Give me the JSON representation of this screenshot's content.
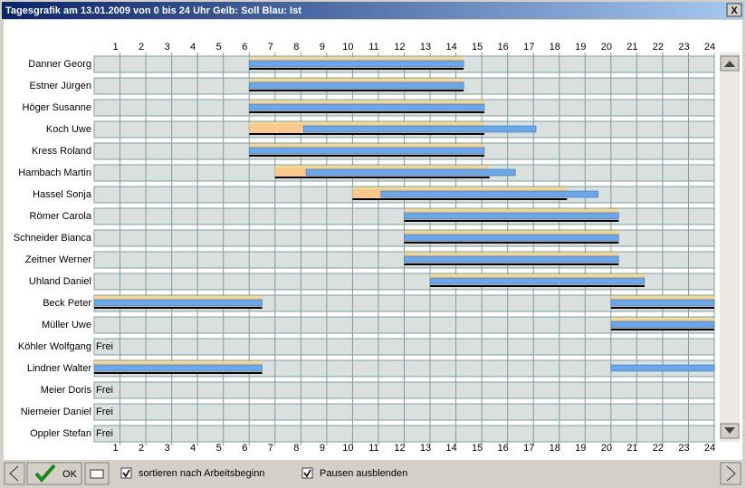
{
  "window": {
    "title": "Tagesgrafik am 13.01.2009 von 0 bis 24 Uhr  Gelb: Soll  Blau: Ist",
    "close": "X"
  },
  "chart_data": {
    "type": "gantt",
    "categories": [
      "Danner Georg",
      "Estner Jürgen",
      "Höger Susanne",
      "Koch Uwe",
      "Kress Roland",
      "Hambach Martin",
      "Hassel Sonja",
      "Römer Carola",
      "Schneider Bianca",
      "Zeitner Werner",
      "Uhland Daniel",
      "Beck Peter",
      "Müller Uwe",
      "Köhler Wolfgang",
      "Lindner Walter",
      "Meier Doris",
      "Niemeier Daniel",
      "Oppler Stefan"
    ],
    "free_label": "Frei",
    "series": [
      {
        "color": "#fcc98c",
        "values": [
          [
            [
              6,
              14.3
            ]
          ],
          [
            [
              6,
              14.3
            ]
          ],
          [
            [
              6,
              15.1
            ]
          ],
          [
            [
              6,
              15.1
            ]
          ],
          [
            [
              6,
              15.1
            ]
          ],
          [
            [
              7,
              15.3
            ]
          ],
          [
            [
              10,
              18.3
            ]
          ],
          [
            [
              12,
              20.3
            ]
          ],
          [
            [
              12,
              20.3
            ]
          ],
          [
            [
              12,
              20.3
            ]
          ],
          [
            [
              13,
              21.3
            ]
          ],
          [
            [
              0,
              6.5
            ],
            [
              20,
              24
            ]
          ],
          [
            [
              20,
              24
            ]
          ],
          [],
          [
            [
              0,
              6.5
            ]
          ],
          [],
          [],
          []
        ]
      },
      {
        "color": "#6aa6ea",
        "values": [
          [
            [
              6,
              14.3
            ]
          ],
          [
            [
              6,
              14.3
            ]
          ],
          [
            [
              6,
              15.1
            ]
          ],
          [
            [
              8.1,
              17.1
            ]
          ],
          [
            [
              6,
              15.1
            ]
          ],
          [
            [
              8.2,
              16.3
            ]
          ],
          [
            [
              11.1,
              19.5
            ]
          ],
          [
            [
              12,
              20.3
            ]
          ],
          [
            [
              12,
              20.3
            ]
          ],
          [
            [
              12,
              20.3
            ]
          ],
          [
            [
              13,
              21.3
            ]
          ],
          [
            [
              0,
              6.5
            ],
            [
              20,
              24
            ]
          ],
          [
            [
              20,
              24
            ]
          ],
          [],
          [
            [
              0,
              6.5
            ],
            [
              20,
              24
            ]
          ],
          [],
          [],
          []
        ]
      }
    ],
    "xlim": [
      0,
      24
    ],
    "xticks": [
      1,
      2,
      3,
      4,
      5,
      6,
      7,
      8,
      9,
      10,
      11,
      12,
      13,
      14,
      15,
      16,
      17,
      18,
      19,
      20,
      21,
      22,
      23,
      24
    ],
    "grid": true
  },
  "footer": {
    "ok": "OK",
    "checkboxes": [
      {
        "label": "sortieren nach Arbeitsbeginn",
        "checked": true
      },
      {
        "label": "Pausen ausblenden",
        "checked": true
      }
    ]
  }
}
